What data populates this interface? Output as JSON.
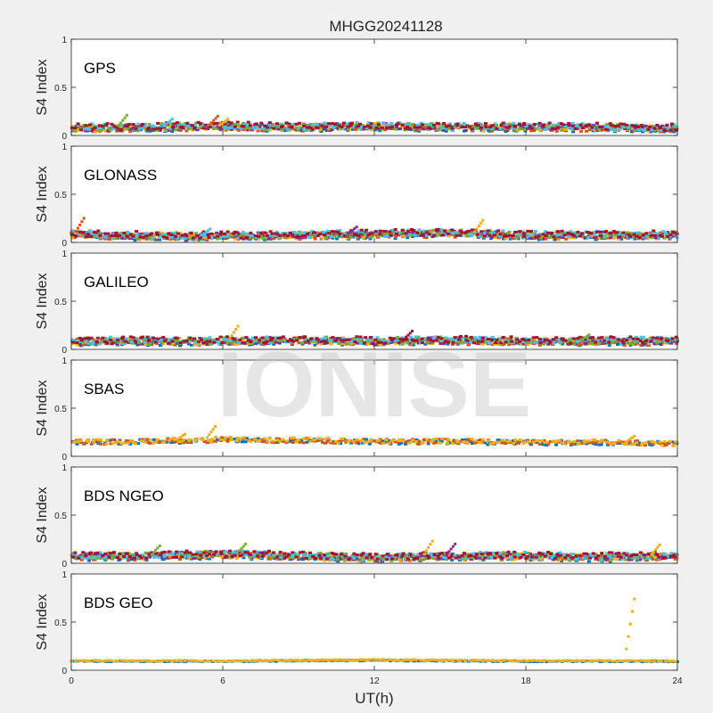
{
  "figure": {
    "title": "MHGG20241128",
    "watermark": "IONISE",
    "xlabel": "UT(h)",
    "background": "#f0f0f0"
  },
  "chart_data": {
    "type": "scatter",
    "title": "MHGG20241128",
    "xlabel": "UT(h)",
    "ylabel": "S4 Index",
    "xlim": [
      0,
      24
    ],
    "xticks": [
      "0",
      "6",
      "12",
      "18",
      "24"
    ],
    "ylim": [
      0,
      1
    ],
    "yticks": [
      "0",
      "0.5",
      "1"
    ],
    "grid": false,
    "panels": [
      {
        "label": "GPS",
        "colors": [
          "#0072bd",
          "#d95319",
          "#edb120",
          "#7e2f8e",
          "#77ac30",
          "#4dbeee",
          "#a2142f"
        ],
        "baseline": [
          [
            0,
            0.07
          ],
          [
            3,
            0.08
          ],
          [
            6,
            0.09
          ],
          [
            9,
            0.08
          ],
          [
            12,
            0.09
          ],
          [
            15,
            0.08
          ],
          [
            18,
            0.08
          ],
          [
            21,
            0.08
          ],
          [
            24,
            0.07
          ]
        ],
        "spread": 0.035,
        "peaks": [
          [
            2.2,
            0.21
          ],
          [
            5.8,
            0.2
          ],
          [
            6.2,
            0.17
          ],
          [
            4.0,
            0.17
          ]
        ]
      },
      {
        "label": "GLONASS",
        "colors": [
          "#0072bd",
          "#d95319",
          "#edb120",
          "#7e2f8e",
          "#77ac30",
          "#4dbeee",
          "#a2142f"
        ],
        "baseline": [
          [
            0,
            0.08
          ],
          [
            3,
            0.06
          ],
          [
            6,
            0.06
          ],
          [
            9,
            0.07
          ],
          [
            12,
            0.08
          ],
          [
            15,
            0.09
          ],
          [
            18,
            0.07
          ],
          [
            21,
            0.07
          ],
          [
            24,
            0.07
          ]
        ],
        "spread": 0.035,
        "peaks": [
          [
            0.5,
            0.25
          ],
          [
            5.5,
            0.14
          ],
          [
            11.3,
            0.16
          ],
          [
            16.3,
            0.23
          ]
        ]
      },
      {
        "label": "GALILEO",
        "colors": [
          "#0072bd",
          "#d95319",
          "#edb120",
          "#7e2f8e",
          "#77ac30",
          "#4dbeee",
          "#a2142f"
        ],
        "baseline": [
          [
            0,
            0.08
          ],
          [
            3,
            0.08
          ],
          [
            6,
            0.08
          ],
          [
            9,
            0.09
          ],
          [
            12,
            0.08
          ],
          [
            15,
            0.09
          ],
          [
            18,
            0.08
          ],
          [
            21,
            0.08
          ],
          [
            24,
            0.08
          ]
        ],
        "spread": 0.035,
        "peaks": [
          [
            6.6,
            0.24
          ],
          [
            13.5,
            0.19
          ],
          [
            20.5,
            0.15
          ]
        ]
      },
      {
        "label": "SBAS",
        "colors": [
          "#0072bd",
          "#d95319",
          "#edb120"
        ],
        "baseline": [
          [
            0,
            0.14
          ],
          [
            3,
            0.15
          ],
          [
            6,
            0.17
          ],
          [
            9,
            0.16
          ],
          [
            12,
            0.15
          ],
          [
            15,
            0.15
          ],
          [
            18,
            0.14
          ],
          [
            21,
            0.14
          ],
          [
            24,
            0.13
          ]
        ],
        "spread": 0.025,
        "peaks": [
          [
            5.7,
            0.31
          ],
          [
            4.5,
            0.23
          ],
          [
            22.3,
            0.21
          ]
        ]
      },
      {
        "label": "BDS NGEO",
        "colors": [
          "#0072bd",
          "#d95319",
          "#edb120",
          "#7e2f8e",
          "#77ac30",
          "#4dbeee",
          "#a2142f"
        ],
        "baseline": [
          [
            0,
            0.07
          ],
          [
            3,
            0.07
          ],
          [
            6,
            0.09
          ],
          [
            9,
            0.07
          ],
          [
            12,
            0.05
          ],
          [
            15,
            0.07
          ],
          [
            18,
            0.07
          ],
          [
            21,
            0.06
          ],
          [
            24,
            0.07
          ]
        ],
        "spread": 0.035,
        "peaks": [
          [
            3.5,
            0.18
          ],
          [
            6.9,
            0.2
          ],
          [
            14.3,
            0.23
          ],
          [
            15.2,
            0.2
          ],
          [
            23.3,
            0.19
          ]
        ]
      },
      {
        "label": "BDS GEO",
        "colors": [
          "#0072bd",
          "#edb120"
        ],
        "baseline": [
          [
            0,
            0.09
          ],
          [
            6,
            0.09
          ],
          [
            12,
            0.1
          ],
          [
            18,
            0.09
          ],
          [
            24,
            0.09
          ]
        ],
        "spread": 0.006,
        "peaks": [
          [
            22.3,
            0.74
          ]
        ]
      }
    ]
  }
}
